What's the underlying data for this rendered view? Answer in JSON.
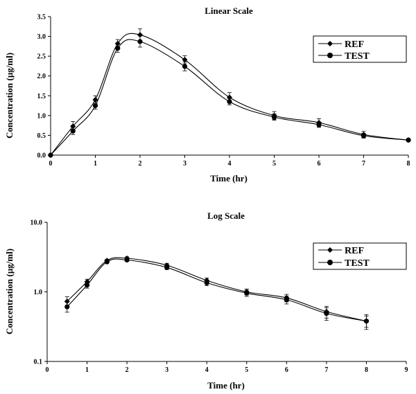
{
  "chart_data": [
    {
      "type": "line",
      "title": "Linear Scale",
      "xlabel": "Time (hr)",
      "ylabel": "Concentration (µg/ml)",
      "xlim": [
        0,
        8
      ],
      "ylim": [
        0,
        3.5
      ],
      "yscale": "linear",
      "xticks": [
        "0",
        "1",
        "2",
        "3",
        "4",
        "5",
        "6",
        "7",
        "8"
      ],
      "yticks": [
        "0.0",
        "0.5",
        "1.0",
        "1.5",
        "2.0",
        "2.5",
        "3.0",
        "3.5"
      ],
      "grid": false,
      "legend": "top-right",
      "series": [
        {
          "name": "REF",
          "marker": "diamond",
          "x": [
            0,
            0.5,
            1,
            1.5,
            2,
            3,
            4,
            5,
            6,
            7,
            8
          ],
          "y": [
            0,
            0.73,
            1.4,
            2.82,
            3.04,
            2.41,
            1.46,
            1.0,
            0.82,
            0.52,
            0.38
          ],
          "err": [
            0,
            0.12,
            0.1,
            0.1,
            0.15,
            0.1,
            0.12,
            0.1,
            0.1,
            0.08,
            0.03
          ]
        },
        {
          "name": "TEST",
          "marker": "circle",
          "x": [
            0,
            0.5,
            1,
            1.5,
            2,
            3,
            4,
            5,
            6,
            7,
            8
          ],
          "y": [
            0,
            0.61,
            1.25,
            2.7,
            2.87,
            2.24,
            1.35,
            0.96,
            0.77,
            0.49,
            0.38
          ],
          "err": [
            0,
            0.09,
            0.09,
            0.1,
            0.14,
            0.11,
            0.08,
            0.08,
            0.07,
            0.06,
            0.03
          ]
        }
      ]
    },
    {
      "type": "line",
      "title": "Log Scale",
      "xlabel": "Time (hr)",
      "ylabel": "Concentration (µg/ml)",
      "xlim": [
        0,
        9
      ],
      "ylim": [
        0.1,
        10
      ],
      "yscale": "log",
      "xticks": [
        "0",
        "1",
        "2",
        "3",
        "4",
        "5",
        "6",
        "7",
        "8",
        "9"
      ],
      "yticks": [
        "0.1",
        "1.0",
        "10.0"
      ],
      "grid": false,
      "legend": "top-right",
      "series": [
        {
          "name": "REF",
          "marker": "diamond",
          "x": [
            0.5,
            1,
            1.5,
            2,
            3,
            4,
            5,
            6,
            7,
            8
          ],
          "y": [
            0.73,
            1.4,
            2.82,
            3.04,
            2.41,
            1.46,
            1.0,
            0.82,
            0.52,
            0.38
          ],
          "err": [
            0.12,
            0.12,
            0.12,
            0.15,
            0.15,
            0.12,
            0.1,
            0.1,
            0.1,
            0.07
          ]
        },
        {
          "name": "TEST",
          "marker": "circle",
          "x": [
            0.5,
            1,
            1.5,
            2,
            3,
            4,
            5,
            6,
            7,
            8
          ],
          "y": [
            0.61,
            1.25,
            2.7,
            2.87,
            2.24,
            1.35,
            0.96,
            0.77,
            0.49,
            0.38
          ],
          "err": [
            0.1,
            0.12,
            0.1,
            0.12,
            0.15,
            0.12,
            0.1,
            0.1,
            0.1,
            0.09
          ]
        }
      ]
    }
  ]
}
